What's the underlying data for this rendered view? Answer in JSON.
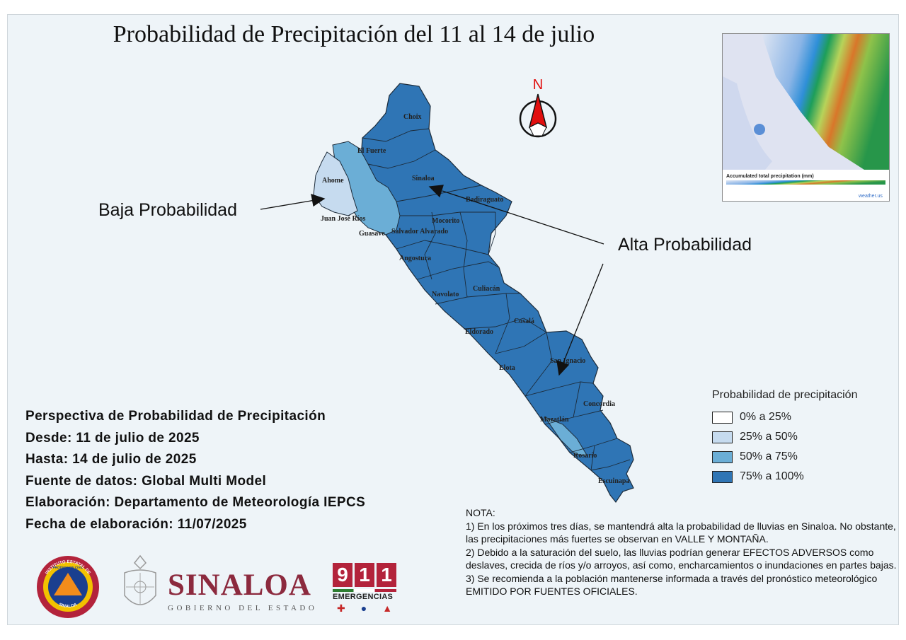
{
  "title": "Probabilidad de Precipitación del 11 al 14 de julio",
  "north_label": "N",
  "annotations": {
    "low": "Baja Probabilidad",
    "high": "Alta Probabilidad"
  },
  "municipalities": [
    "Choix",
    "El Fuerte",
    "Ahome",
    "Sinaloa",
    "Badiraguato",
    "Juan José Ríos",
    "Guasave",
    "Salvador Alvarado",
    "Mocorito",
    "Angostura",
    "Navolato",
    "Culiacán",
    "Cosalá",
    "Eldorado",
    "Elota",
    "San Ignacio",
    "Concordia",
    "Mazatlán",
    "Rosario",
    "Escuinapa"
  ],
  "legend": {
    "title": "Probabilidad de precipitación",
    "items": [
      {
        "label": "0% a 25%",
        "color": "#ffffff"
      },
      {
        "label": "25% a 50%",
        "color": "#c6dbef"
      },
      {
        "label": "50% a 75%",
        "color": "#6baed6"
      },
      {
        "label": "75% a 100%",
        "color": "#2f75b5"
      }
    ]
  },
  "info": {
    "line1": "Perspectiva de Probabilidad de Precipitación",
    "line2": "Desde: 11 de julio de 2025",
    "line3": "Hasta: 14 de julio de 2025",
    "line4": "Fuente de datos: Global Multi Model",
    "line5": "Elaboración: Departamento de Meteorología IEPCS",
    "line6": "Fecha de elaboración: 11/07/2025"
  },
  "nota": {
    "heading": "NOTA:",
    "p1": "1) En los próximos tres días, se mantendrá alta la probabilidad de lluvias en Sinaloa. No obstante, las precipitaciones más fuertes se observan en VALLE Y MONTAÑA.",
    "p2": "2) Debido a la saturación del suelo, las lluvias podrían generar EFECTOS ADVERSOS como deslaves, crecida de ríos y/o arroyos, así como, encharcamientos o inundaciones en partes bajas.",
    "p3": "3) Se recomienda a la población mantenerse informada a través del pronóstico meteorológico EMITIDO POR FUENTES OFICIALES."
  },
  "inset": {
    "caption": "Accumulated total precipitation (mm)",
    "brand": "weather.us"
  },
  "logos": {
    "pc_top": "INSTITUTO ESTATAL DE",
    "pc_mid": "PROTECCION CIVIL",
    "pc_bottom": "SINALOA",
    "sinaloa": "SINALOA",
    "gobierno": "GOBIERNO DEL ESTADO",
    "digits": [
      "9",
      "1",
      "1"
    ],
    "emergencias": "EMERGENCIAS"
  },
  "colors": {
    "high": "#2f75b5",
    "mid": "#6baed6",
    "low": "#c6dbef",
    "sinaloa_brand": "#8c2a3e",
    "red_911": "#b3233b"
  }
}
